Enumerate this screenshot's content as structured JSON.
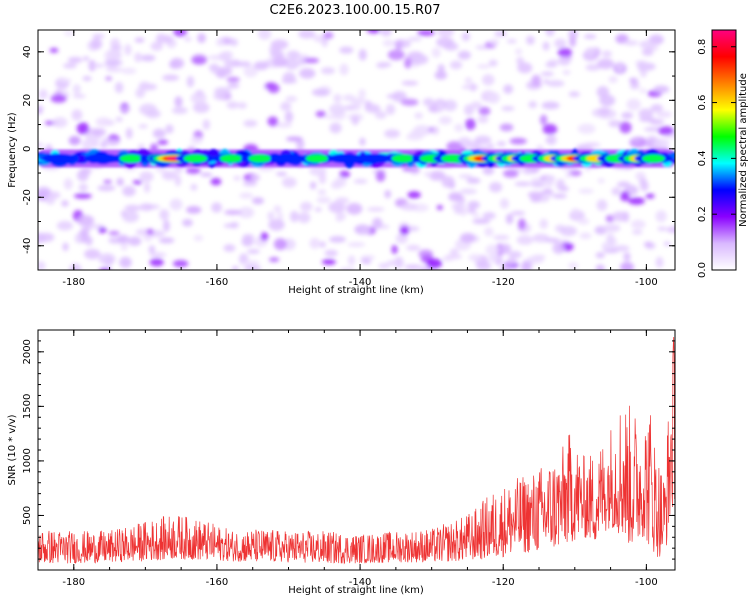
{
  "title": "C2E6.2023.100.00.15.R07",
  "chart_data": [
    {
      "type": "heatmap",
      "xlabel": "Height of straight line (km)",
      "ylabel": "Frequency (Hz)",
      "xlim": [
        -185,
        -96
      ],
      "ylim": [
        -50,
        49
      ],
      "xticks": [
        -180,
        -160,
        -140,
        -120,
        -100
      ],
      "yticks": [
        -40,
        -20,
        0,
        20,
        40
      ],
      "signal_band": {
        "frequency_hz": -4,
        "peaks": [
          {
            "x": -182,
            "amp": 0.35
          },
          {
            "x": -176,
            "amp": 0.4
          },
          {
            "x": -172,
            "amp": 0.45
          },
          {
            "x": -168,
            "amp": 0.5
          },
          {
            "x": -166,
            "amp": 0.85
          },
          {
            "x": -163,
            "amp": 0.5
          },
          {
            "x": -158,
            "amp": 0.45
          },
          {
            "x": -154,
            "amp": 0.45
          },
          {
            "x": -150,
            "amp": 0.4
          },
          {
            "x": -146,
            "amp": 0.45
          },
          {
            "x": -142,
            "amp": 0.4
          },
          {
            "x": -138,
            "amp": 0.35
          },
          {
            "x": -134,
            "amp": 0.45
          },
          {
            "x": -130,
            "amp": 0.5
          },
          {
            "x": -127,
            "amp": 0.5
          },
          {
            "x": -123,
            "amp": 0.75
          },
          {
            "x": -120,
            "amp": 0.6
          },
          {
            "x": -118,
            "amp": 0.65
          },
          {
            "x": -116,
            "amp": 0.55
          },
          {
            "x": -113,
            "amp": 0.6
          },
          {
            "x": -110,
            "amp": 0.8
          },
          {
            "x": -107,
            "amp": 0.7
          },
          {
            "x": -104,
            "amp": 0.55
          },
          {
            "x": -101,
            "amp": 0.6
          },
          {
            "x": -99,
            "amp": 0.45
          }
        ]
      },
      "colorbar": {
        "label": "Normalized spectral amplitude",
        "ticks": [
          0.0,
          0.2,
          0.4,
          0.6,
          0.8
        ],
        "range": [
          0,
          0.86
        ],
        "colors": [
          "#ffffff",
          "#d9b8ff",
          "#8a00ff",
          "#0000ff",
          "#00ffff",
          "#00ff00",
          "#ffff00",
          "#ff8000",
          "#ff0000",
          "#ff0080"
        ]
      }
    },
    {
      "type": "line",
      "xlabel": "Height of straight line (km)",
      "ylabel": "SNR (10 * v/v)",
      "xlim": [
        -185,
        -96
      ],
      "ylim": [
        0,
        2200
      ],
      "xticks": [
        -180,
        -160,
        -140,
        -120,
        -100
      ],
      "yticks": [
        500,
        1000,
        1500,
        2000
      ],
      "series": [
        {
          "color": "#ee3333",
          "envelope": {
            "x": [
              -185,
              -180,
              -175,
              -170,
              -166,
              -162,
              -158,
              -154,
              -150,
              -145,
              -140,
              -135,
              -130,
              -126,
              -124,
              -122,
              -120,
              -118,
              -116,
              -114,
              -112,
              -110.5,
              -109,
              -107,
              -105,
              -103.5,
              -102,
              -100.5,
              -99.5,
              -98.5,
              -97.5,
              -96.2
            ],
            "low": [
              60,
              60,
              70,
              80,
              100,
              90,
              80,
              70,
              70,
              60,
              60,
              70,
              70,
              80,
              90,
              100,
              120,
              150,
              160,
              170,
              200,
              250,
              300,
              250,
              400,
              300,
              200,
              300,
              200,
              120,
              100,
              600
            ],
            "high": [
              380,
              360,
              360,
              450,
              520,
              460,
              370,
              380,
              360,
              360,
              330,
              360,
              380,
              480,
              560,
              700,
              780,
              850,
              900,
              1000,
              1100,
              1300,
              1050,
              1100,
              1350,
              1600,
              1500,
              1400,
              1550,
              1100,
              900,
              2200
            ]
          }
        }
      ]
    }
  ]
}
